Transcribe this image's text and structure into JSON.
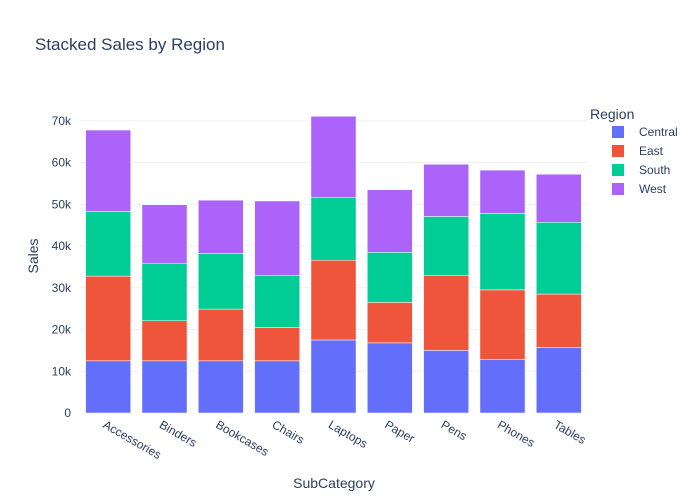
{
  "chart_data": {
    "type": "bar",
    "stacked": true,
    "title": "Stacked Sales by Region",
    "xlabel": "SubCategory",
    "ylabel": "Sales",
    "ylim": [
      0,
      75000
    ],
    "ytick_values": [
      0,
      10000,
      20000,
      30000,
      40000,
      50000,
      60000,
      70000
    ],
    "ytick_labels": [
      "0",
      "10k",
      "20k",
      "30k",
      "40k",
      "50k",
      "60k",
      "70k"
    ],
    "grid": true,
    "legend_title": "Region",
    "legend_position": "right",
    "categories": [
      "Accessories",
      "Binders",
      "Bookcases",
      "Chairs",
      "Laptops",
      "Paper",
      "Pens",
      "Phones",
      "Tables"
    ],
    "series": [
      {
        "name": "Central",
        "color": "#636efa",
        "values": [
          12500,
          12500,
          12500,
          12500,
          17500,
          16800,
          15000,
          12800,
          15700
        ]
      },
      {
        "name": "East",
        "color": "#EF553B",
        "values": [
          20300,
          9600,
          12400,
          8000,
          19100,
          9700,
          18000,
          16700,
          12800
        ]
      },
      {
        "name": "South",
        "color": "#00cc96",
        "values": [
          15500,
          13800,
          13300,
          12500,
          15000,
          12000,
          14100,
          18300,
          17200
        ]
      },
      {
        "name": "West",
        "color": "#ab63fa",
        "values": [
          19500,
          14000,
          12800,
          17800,
          19500,
          15000,
          12500,
          10400,
          11500
        ]
      }
    ]
  }
}
